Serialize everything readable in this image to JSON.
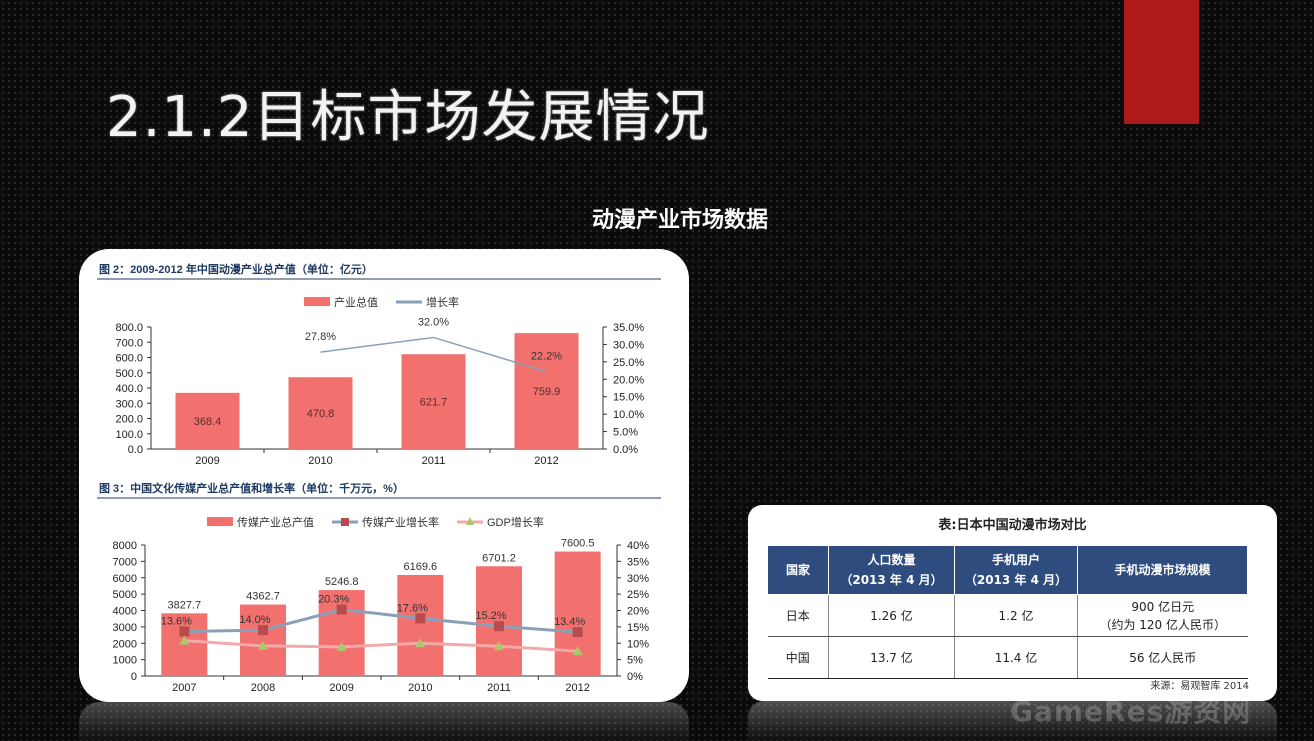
{
  "title": "2.1.2目标市场发展情况",
  "subtitle": "动漫产业市场数据",
  "watermark": "GameRes游资网",
  "colors": {
    "bar": "#f2716e",
    "line_blue": "#8aa0b8",
    "marker_dark": "#b84b4b",
    "line_pink": "#f3a9a9",
    "gdp_marker": "#a9c96a",
    "table_header": "#2e4d7e",
    "accent_red": "#ae1a1a"
  },
  "chart_data": [
    {
      "type": "bar",
      "title": "图 2：2009-2012 年中国动漫产业总产值（单位：亿元）",
      "categories": [
        "2009",
        "2010",
        "2011",
        "2012"
      ],
      "series": [
        {
          "name": "产业总值",
          "type": "bar",
          "values": [
            368.4,
            470.8,
            621.7,
            759.9
          ],
          "labels": [
            "368.4",
            "470.8",
            "621.7",
            "759.9"
          ]
        },
        {
          "name": "增长率",
          "type": "line",
          "axis": "right",
          "values": [
            null,
            27.8,
            32.0,
            22.2
          ],
          "labels": [
            "",
            "27.8%",
            "32.0%",
            "22.2%"
          ]
        }
      ],
      "y_left": {
        "min": 0,
        "max": 800,
        "ticks": [
          "0.0",
          "100.0",
          "200.0",
          "300.0",
          "400.0",
          "500.0",
          "600.0",
          "700.0",
          "800.0"
        ]
      },
      "y_right": {
        "min": 0,
        "max": 35,
        "ticks": [
          "0.0%",
          "5.0%",
          "10.0%",
          "15.0%",
          "20.0%",
          "25.0%",
          "30.0%",
          "35.0%"
        ]
      },
      "legend": "top-center",
      "grid": false
    },
    {
      "type": "bar",
      "title": "图 3：中国文化传媒产业总产值和增长率（单位：千万元，%）",
      "categories": [
        "2007",
        "2008",
        "2009",
        "2010",
        "2011",
        "2012"
      ],
      "series": [
        {
          "name": "传媒产业总产值",
          "type": "bar",
          "values": [
            3827.7,
            4362.7,
            5246.8,
            6169.6,
            6701.2,
            7600.5
          ],
          "labels": [
            "3827.7",
            "4362.7",
            "5246.8",
            "6169.6",
            "6701.2",
            "7600.5"
          ]
        },
        {
          "name": "传媒产业增长率",
          "type": "line",
          "axis": "right",
          "values": [
            13.6,
            14.0,
            20.3,
            17.6,
            15.2,
            13.4
          ],
          "labels": [
            "13.6%",
            "14.0%",
            "20.3%",
            "17.6%",
            "15.2%",
            "13.4%"
          ]
        },
        {
          "name": "GDP增长率",
          "type": "line",
          "axis": "right",
          "values": [
            10.8,
            9.2,
            8.9,
            10.0,
            9.1,
            7.6
          ]
        }
      ],
      "y_left": {
        "min": 0,
        "max": 8000,
        "ticks": [
          "0",
          "1000",
          "2000",
          "3000",
          "4000",
          "5000",
          "6000",
          "7000",
          "8000"
        ]
      },
      "y_right": {
        "min": 0,
        "max": 40,
        "ticks": [
          "0%",
          "5%",
          "10%",
          "15%",
          "20%",
          "25%",
          "30%",
          "35%",
          "40%"
        ]
      },
      "legend": "top-center",
      "grid": false
    }
  ],
  "table": {
    "caption": "表:日本中国动漫市场对比",
    "headers": [
      {
        "line1": "国家",
        "line2": ""
      },
      {
        "line1": "人口数量",
        "line2": "（2013 年 4 月）"
      },
      {
        "line1": "手机用户",
        "line2": "（2013 年 4 月）"
      },
      {
        "line1": "手机动漫市场规模",
        "line2": ""
      }
    ],
    "rows": [
      {
        "country": "日本",
        "population": "1.26 亿",
        "mobile": "1.2 亿",
        "market_line1": "900 亿日元",
        "market_line2": "（约为 120 亿人民币）"
      },
      {
        "country": "中国",
        "population": "13.7 亿",
        "mobile": "11.4 亿",
        "market_line1": "56 亿人民币",
        "market_line2": ""
      }
    ],
    "source": "来源：易观智库 2014"
  }
}
